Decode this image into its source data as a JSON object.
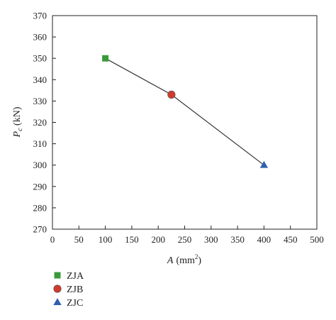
{
  "chart_data": {
    "type": "scatter",
    "title": "",
    "xlabel": {
      "main": "A",
      "unit_prefix": "(mm",
      "unit_sup": "2",
      "unit_suffix": ")"
    },
    "ylabel": {
      "main": "P",
      "subscript": "c",
      "unit": " (kN)"
    },
    "xlim": [
      0,
      500
    ],
    "ylim": [
      270,
      370
    ],
    "xticks": [
      0,
      50,
      100,
      150,
      200,
      250,
      300,
      350,
      400,
      450,
      500
    ],
    "yticks": [
      270,
      280,
      290,
      300,
      310,
      320,
      330,
      340,
      350,
      360,
      370
    ],
    "connecting_line": true,
    "grid": false,
    "legend_position": "bottom-left, below plot",
    "series": [
      {
        "name": "ZJA",
        "marker": "square",
        "color": "#3a9a3a",
        "x": [
          100
        ],
        "y": [
          350
        ]
      },
      {
        "name": "ZJB",
        "marker": "circle",
        "color": "#d03a2e",
        "x": [
          225
        ],
        "y": [
          333
        ]
      },
      {
        "name": "ZJC",
        "marker": "triangle",
        "color": "#2f5fae",
        "x": [
          400
        ],
        "y": [
          300
        ]
      }
    ]
  }
}
